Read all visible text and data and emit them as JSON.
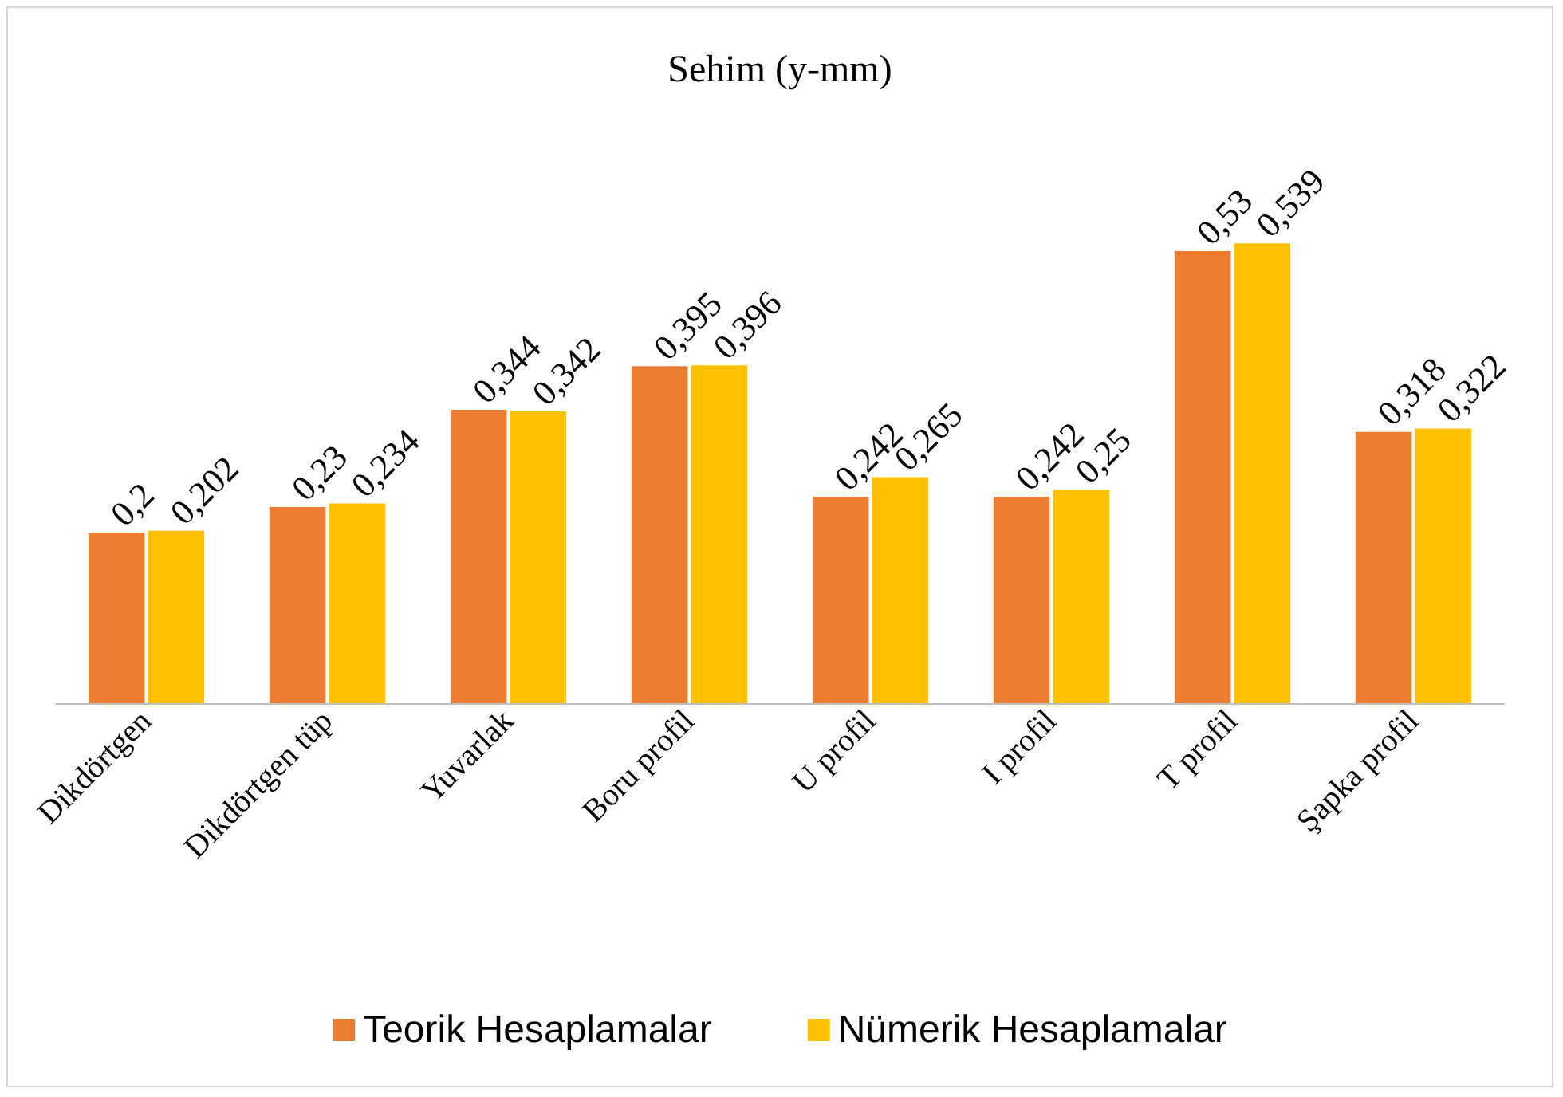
{
  "chart_data": {
    "type": "bar",
    "title": "Sehim (y-mm)",
    "categories": [
      "Dikdörtgen",
      "Dikdörtgen tüp",
      "Yuvarlak",
      "Boru profil",
      "U profil",
      "I profil",
      "T profil",
      "Şapka profil"
    ],
    "series": [
      {
        "name": "Teorik Hesaplamalar",
        "color": "#ed7d31",
        "values": [
          0.2,
          0.23,
          0.344,
          0.395,
          0.242,
          0.242,
          0.53,
          0.318
        ],
        "value_labels": [
          "0,2",
          "0,23",
          "0,344",
          "0,395",
          "0,242",
          "0,242",
          "0,53",
          "0,318"
        ]
      },
      {
        "name": "Nümerik Hesaplamalar",
        "color": "#ffc000",
        "values": [
          0.202,
          0.234,
          0.342,
          0.396,
          0.265,
          0.25,
          0.539,
          0.322
        ],
        "value_labels": [
          "0,202",
          "0,234",
          "0,342",
          "0,396",
          "0,265",
          "0,25",
          "0,539",
          "0,322"
        ]
      }
    ],
    "legend": "bottom"
  }
}
